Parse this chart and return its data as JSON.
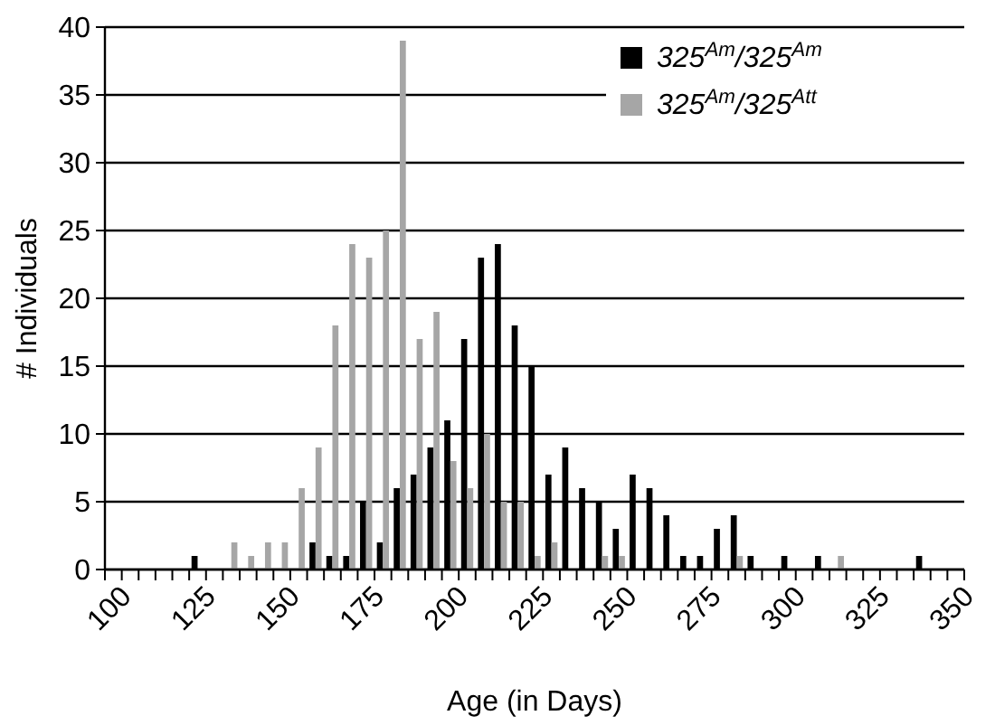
{
  "chart_data": {
    "type": "bar",
    "xlabel": "Age (in Days)",
    "ylabel": "# Individuals",
    "categories": [
      "100",
      null,
      null,
      null,
      null,
      "125",
      null,
      null,
      null,
      null,
      "150",
      null,
      null,
      null,
      null,
      "175",
      null,
      null,
      null,
      null,
      "200",
      null,
      null,
      null,
      null,
      "225",
      null,
      null,
      null,
      null,
      "250",
      null,
      null,
      null,
      null,
      "275",
      null,
      null,
      null,
      null,
      "300",
      null,
      null,
      null,
      null,
      "325",
      null,
      null,
      null,
      null,
      "350"
    ],
    "series": [
      {
        "name": "325$^{Am}$/325$^{Am}$",
        "color": "#000000",
        "values": [
          0,
          0,
          0,
          0,
          0,
          1,
          0,
          0,
          0,
          0,
          0,
          0,
          2,
          1,
          1,
          5,
          2,
          6,
          7,
          9,
          11,
          17,
          23,
          24,
          18,
          15,
          7,
          9,
          6,
          5,
          3,
          7,
          6,
          4,
          1,
          1,
          3,
          4,
          1,
          0,
          1,
          0,
          1,
          0,
          0,
          0,
          0,
          0,
          1,
          0,
          0
        ]
      },
      {
        "name": "325$^{Am}$/325$^{Att}$",
        "color": "#a6a6a6",
        "values": [
          0,
          0,
          0,
          0,
          0,
          0,
          0,
          2,
          1,
          2,
          2,
          6,
          9,
          18,
          24,
          23,
          25,
          39,
          17,
          19,
          8,
          6,
          10,
          5,
          5,
          1,
          2,
          0,
          0,
          1,
          1,
          0,
          0,
          0,
          0,
          0,
          0,
          1,
          0,
          0,
          0,
          0,
          0,
          1,
          0,
          0,
          0,
          0,
          0,
          0,
          0
        ]
      }
    ],
    "ylim": [
      0,
      40
    ],
    "yticks": [
      0,
      5,
      10,
      15,
      20,
      25,
      30,
      35,
      40
    ],
    "grid": "y",
    "legend": "top right"
  }
}
